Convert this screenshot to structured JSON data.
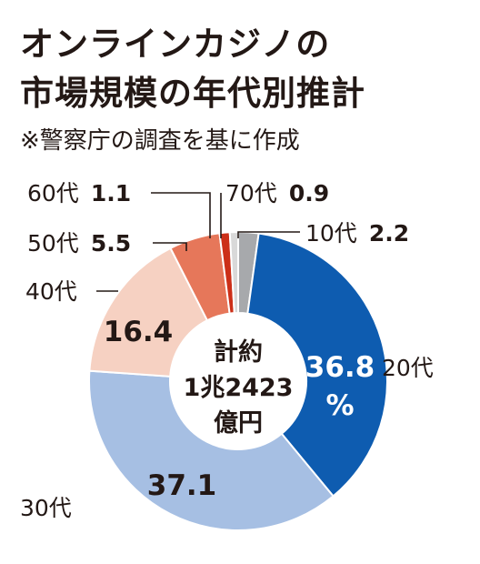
{
  "title_line1": "オンラインカジノの",
  "title_line2": "市場規模の年代別推計",
  "subtitle": "※警察庁の調査を基に作成",
  "chart_data": {
    "type": "pie",
    "title": "オンラインカジノの市場規模の年代別推計",
    "subtitle": "※警察庁の調査を基に作成",
    "categories": [
      "10代",
      "20代",
      "30代",
      "40代",
      "50代",
      "60代",
      "70代"
    ],
    "values": [
      2.2,
      36.8,
      37.1,
      16.4,
      5.5,
      1.1,
      0.9
    ],
    "value_labels": [
      "2.2",
      "36.8",
      "37.1",
      "16.4",
      "5.5",
      "1.1",
      "0.9"
    ],
    "unit": "%",
    "colors": [
      "#a7a9ac",
      "#0e5cb0",
      "#a6bfe3",
      "#f6d1c2",
      "#e6775a",
      "#cc2f18",
      "#d9d9d9"
    ],
    "center_label": [
      "計約",
      "1兆2423",
      "億円"
    ],
    "donut": true,
    "legend": "none"
  }
}
